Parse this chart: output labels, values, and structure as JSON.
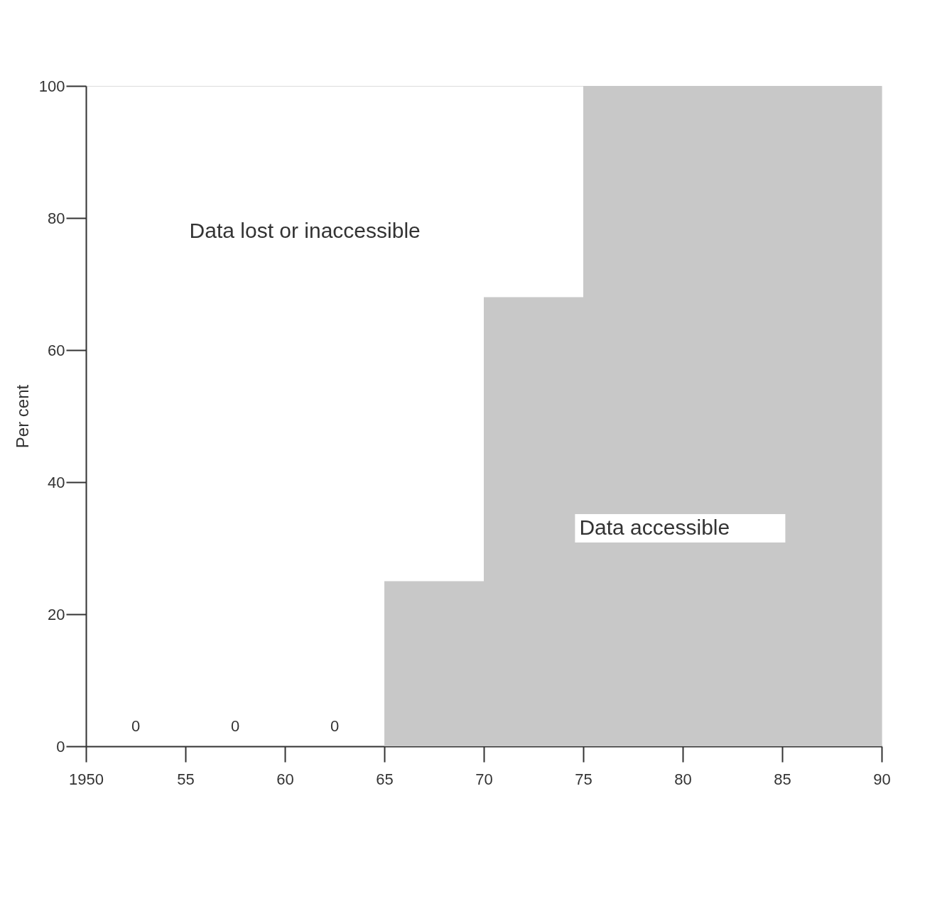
{
  "chart_data": {
    "type": "histogram",
    "bins": [
      1950,
      1955,
      1960,
      1965,
      1970,
      1975,
      1980,
      1985,
      1990
    ],
    "values": [
      0,
      0,
      0,
      25,
      68,
      100,
      100,
      100
    ],
    "value_labels": [
      "0",
      "0",
      "0",
      null,
      null,
      null,
      null,
      null
    ],
    "color": "#c8c8c8",
    "ylabel": "Per cent",
    "xlim": [
      1950,
      1990
    ],
    "xticks": [
      1950,
      {
        "value": 1955,
        "label": "55"
      },
      {
        "value": 1960,
        "label": "60"
      },
      {
        "value": 1965,
        "label": "65"
      },
      {
        "value": 1970,
        "label": "70"
      },
      {
        "value": 1975,
        "label": "75"
      },
      {
        "value": 1980,
        "label": "80"
      },
      {
        "value": 1985,
        "label": "85"
      },
      {
        "value": 1990,
        "label": "90"
      }
    ],
    "ylim": [
      0,
      100
    ],
    "yticks": [
      0,
      20,
      40,
      60,
      80,
      100
    ],
    "annotations": [
      "Data lost or inaccessible",
      "Data accessible"
    ],
    "grid": false
  }
}
